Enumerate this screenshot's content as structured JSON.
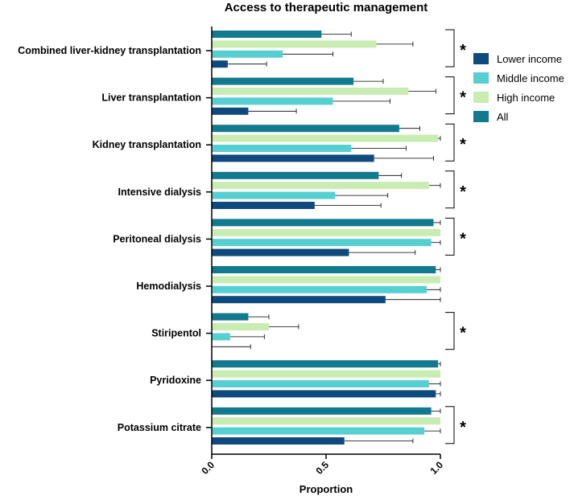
{
  "chart_data": {
    "type": "bar",
    "orientation": "horizontal",
    "title": "Access to therapeutic management",
    "xlabel": "Proportion",
    "ylabel": "",
    "xlim": [
      0,
      1
    ],
    "xticks": [
      "0.0",
      "0.5",
      "1.0"
    ],
    "categories": [
      "Combined liver-kidney transplantation",
      "Liver transplantation",
      "Kidney transplantation",
      "Intensive dialysis",
      "Peritoneal dialysis",
      "Hemodialysis",
      "Stiripentol",
      "Pyridoxine",
      "Potassium citrate"
    ],
    "series": [
      {
        "name": "All",
        "color": "#12798e",
        "values": [
          0.48,
          0.62,
          0.82,
          0.73,
          0.97,
          0.98,
          0.16,
          0.99,
          0.96
        ],
        "error_upper": [
          0.61,
          0.75,
          0.91,
          0.83,
          1.0,
          1.0,
          0.25,
          1.0,
          1.0
        ]
      },
      {
        "name": "High income",
        "color": "#c8ecb2",
        "values": [
          0.72,
          0.86,
          0.99,
          0.95,
          1.0,
          1.0,
          0.25,
          1.0,
          1.0
        ],
        "error_upper": [
          0.88,
          0.98,
          1.0,
          1.0,
          1.0,
          1.0,
          0.38,
          1.0,
          1.0
        ]
      },
      {
        "name": "Middle income",
        "color": "#56cfd3",
        "values": [
          0.31,
          0.53,
          0.61,
          0.54,
          0.96,
          0.94,
          0.08,
          0.95,
          0.93
        ],
        "error_upper": [
          0.53,
          0.78,
          0.85,
          0.77,
          1.0,
          1.0,
          0.23,
          1.0,
          1.0
        ]
      },
      {
        "name": "Lower income",
        "color": "#0e4a7e",
        "values": [
          0.07,
          0.16,
          0.71,
          0.45,
          0.6,
          0.76,
          0.0,
          0.98,
          0.58
        ],
        "error_upper": [
          0.24,
          0.37,
          0.97,
          0.74,
          0.89,
          1.0,
          0.17,
          1.0,
          0.88
        ]
      }
    ],
    "legend": [
      "Lower income",
      "Middle income",
      "High income",
      "All"
    ],
    "legend_position": "right",
    "significance_marker": "*",
    "significant": [
      true,
      true,
      true,
      true,
      true,
      false,
      true,
      false,
      true
    ]
  }
}
